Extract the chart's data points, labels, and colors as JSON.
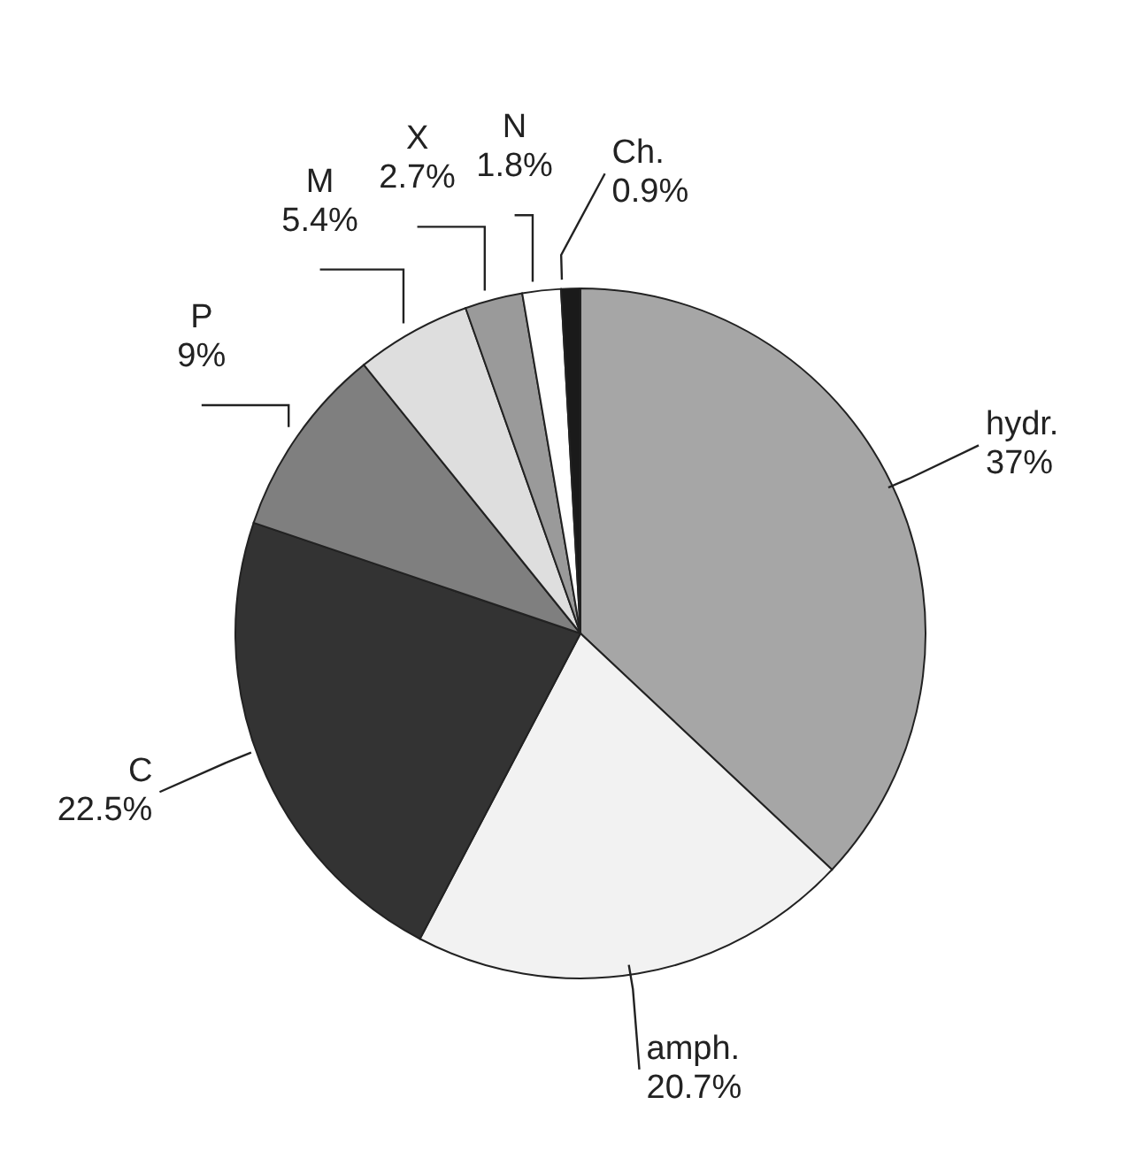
{
  "chart_data": {
    "type": "pie",
    "categories": [
      "hydr.",
      "amph.",
      "C",
      "P",
      "M",
      "X",
      "N",
      "Ch."
    ],
    "values": [
      37,
      20.7,
      22.5,
      9,
      5.4,
      2.7,
      1.8,
      0.9
    ],
    "colors": [
      "#a6a6a6",
      "#f2f2f2",
      "#333333",
      "#7f7f7f",
      "#dedede",
      "#9a9a9a",
      "#ffffff",
      "#1a1a1a"
    ],
    "value_labels": [
      "37%",
      "20.7%",
      "22.5%",
      "9%",
      "5.4%",
      "2.7%",
      "1.8%",
      "0.9%"
    ]
  }
}
